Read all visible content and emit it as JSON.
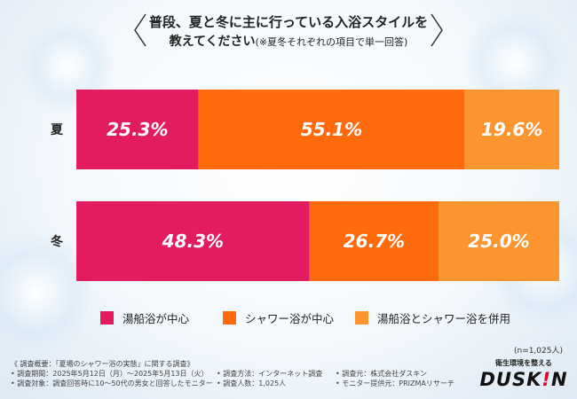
{
  "title": {
    "line1": "普段、夏と冬に主に行っている入浴スタイルを",
    "line2": "教えてください",
    "line2_note": "(※夏冬それぞれの項目で単一回答)"
  },
  "chart_data": {
    "type": "bar",
    "orientation": "horizontal",
    "stacked": true,
    "percent": true,
    "categories": [
      "夏",
      "冬"
    ],
    "series": [
      {
        "name": "湯船浴が中心",
        "values": [
          25.3,
          48.3
        ],
        "labels": [
          "25.3%",
          "48.3%"
        ],
        "color": "#e31c5f"
      },
      {
        "name": "シャワー浴が中心",
        "values": [
          55.1,
          26.7
        ],
        "labels": [
          "55.1%",
          "26.7%"
        ],
        "color": "#ff6a0d"
      },
      {
        "name": "湯船浴とシャワー浴を併用",
        "values": [
          19.6,
          25.0
        ],
        "labels": [
          "19.6%",
          "25.0%"
        ],
        "color": "#fb9530"
      }
    ],
    "xlim": [
      0,
      100
    ],
    "legend_position": "bottom"
  },
  "sample_size": "(n=1,025人)",
  "notes": {
    "overview": "《 調査概要：「夏場のシャワー浴の実態」に関する調査》",
    "period": "• 調査期間：2025年5月12日（月）～2025年5月13日（火）",
    "method": "• 調査方法：インターネット調査",
    "organizer": "• 調査元：株式会社ダスキン",
    "target": "• 調査対象：調査回答時に10～50代の男女と回答したモニター",
    "count": "• 調査人数：1,025人",
    "provider": "• モニター提供元：PRIZMAリサーチ"
  },
  "brand": {
    "tagline": "衛生環境を整える",
    "logo_main": "DUSK",
    "logo_accent": "!",
    "logo_end": "N"
  }
}
